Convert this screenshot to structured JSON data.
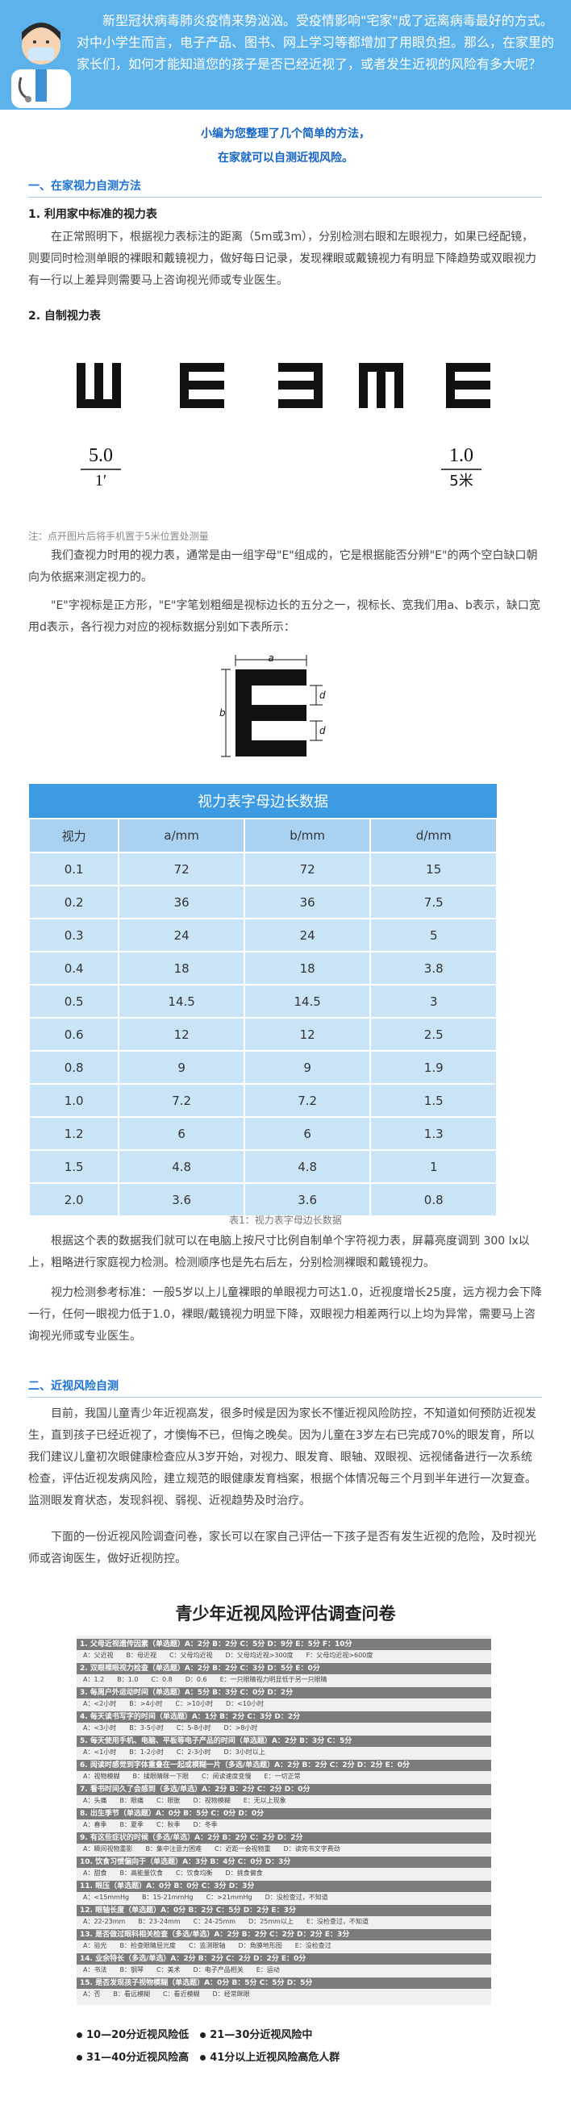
{
  "header": {
    "text": "新型冠状病毒肺炎疫情来势汹汹。受疫情影响\"宅家\"成了远离病毒最好的方式。对中小学生而言，电子产品、图书、网上学习等都增加了用眼负担。那么，在家里的家长们，如何才能知道您的孩子是否已经近视了，或者发生近视的风险有多大呢？"
  },
  "intro": [
    "小编为您整理了几个简单的方法，",
    "在家就可以自测近视风险。"
  ],
  "section1": {
    "heading": "一、在家视力自测方法",
    "sub1": "1. 利用家中标准的视力表",
    "p1": "在正常照明下，根据视力表标注的距离（5m或3m），分别检测右眼和左眼视力，如果已经配镜，则要同时检测单眼的裸眼和戴镜视力，做好每日记录，发现裸眼或戴镜视力有明显下降趋势或双眼视力有一行以上差异则需要马上咨询视光师或专业医生。",
    "sub2": "2. 自制视力表",
    "chart_labels": [
      "5.0",
      "1′",
      "1.0",
      "5米"
    ],
    "note": "注：点开图片后将手机置于5米位置处测量",
    "p2": "我们查视力时用的视力表，通常是由一组字母\"E\"组成的，它是根据能否分辨\"E\"的两个空白缺口朝向为依据来测定视力的。",
    "p3": "\"E\"字视标是正方形，\"E\"字笔划粗细是视标边长的五分之一，视标长、宽我们用a、b表示，缺口宽用d表示，各行视力对应的视标数据分别如下表所示：",
    "e_labels": [
      "a",
      "b",
      "d",
      "d"
    ],
    "p4": "根据这个表的数据我们就可以在电脑上按尺寸比例自制单个字符视力表，屏幕亮度调到 300 lx以上，粗略进行家庭视力检测。检测顺序也是先右后左，分别检测裸眼和戴镜视力。",
    "p5": "视力检测参考标准：一般5岁以上儿童裸眼的单眼视力可达1.0，近视度增长25度，远方视力会下降一行，任何一眼视力低于1.0，裸眼/戴镜视力明显下降，双眼视力相差两行以上均为异常，需要马上咨询视光师或专业医生。"
  },
  "table": {
    "title": "视力表字母边长数据",
    "columns": [
      "视力",
      "a/mm",
      "b/mm",
      "d/mm"
    ],
    "rows": [
      [
        "0.1",
        "72",
        "72",
        "15"
      ],
      [
        "0.2",
        "36",
        "36",
        "7.5"
      ],
      [
        "0.3",
        "24",
        "24",
        "5"
      ],
      [
        "0.4",
        "18",
        "18",
        "3.8"
      ],
      [
        "0.5",
        "14.5",
        "14.5",
        "3"
      ],
      [
        "0.6",
        "12",
        "12",
        "2.5"
      ],
      [
        "0.8",
        "9",
        "9",
        "1.9"
      ],
      [
        "1.0",
        "7.2",
        "7.2",
        "1.5"
      ],
      [
        "1.2",
        "6",
        "6",
        "1.3"
      ],
      [
        "1.5",
        "4.8",
        "4.8",
        "1"
      ],
      [
        "2.0",
        "3.6",
        "3.6",
        "0.8"
      ]
    ],
    "caption": "表1：视力表字母边长数据"
  },
  "section2": {
    "heading": "二、近视风险自测",
    "p1": "目前，我国儿童青少年近视高发，很多时候是因为家长不懂近视风险防控，不知道如何预防近视发生，直到孩子已经近视了，才懊悔不已，但悔之晚矣。因为儿童在3岁左右已完成70%的眼发育，所以我们建议儿童初次眼健康检查应从3岁开始，对视力、眼发育、眼轴、双眼视、远视储备进行一次系统检查，评估近视发病风险，建立规范的眼健康发育档案，根据个体情况每三个月到半年进行一次复查。监测眼发育状态，发现斜视、弱视、近视趋势及时治疗。",
    "p2": "下面的一份近视风险调查问卷，家长可以在家自己评估一下孩子是否有发生近视的危险，及时视光师或咨询医生，做好近视防控。"
  },
  "questionnaire": {
    "title": "青少年近视风险评估调查问卷",
    "items": [
      {
        "q": "1. 父母近视遗传因素（单选题）A：2分 B：2分 C：5分 D：9分 E：5分 F：10分",
        "o": "A：父近视　　B：母近视　　C：父母均近视　　D：父母均近视>300度　　F：父母均近视>600度"
      },
      {
        "q": "2. 双眼裸眼视力检查（单选题）A：2分 B：2分 C：3分 D：5分 E：0分",
        "o": "A：1.2　　B：1.0　　C：0.8　　D：0.6　　E：一只眼睛视力明显低于另一只眼睛"
      },
      {
        "q": "3. 每周户外运动时间（单选题）A：5分 B：3分 C：0分 D：2分",
        "o": "A：<2小时　　B：>4小时　　C：>10小时　　D：<10小时"
      },
      {
        "q": "4. 每天读书写字的时间（单选题）A：1分 B：2分 C：3分 D：2分",
        "o": "A：<3小时　　B：3-5小时　　C：5-8小时　　D：>8小时"
      },
      {
        "q": "5. 每天使用手机、电脑、平板等电子产品的时间（单选题）A：2分 B：3分 C：5分",
        "o": "A：<1小时　　B：1-2小时　　C：2-3小时　　D：3小时以上"
      },
      {
        "q": "6. 阅读时感觉到字体重叠在一起或模糊一片（多选/单选题）A：2分 B：2分 C：2分 D：2分 E：0分",
        "o": "A：视物模糊　　B：揉眼睛眯一下眼　　C：阅读速度变慢　　E：一切正常"
      },
      {
        "q": "7. 看书时间久了会感到（多选/单选）A：2分 B：2分 C：2分 D：0分",
        "o": "A：头痛　　B：眼痛　　C：眼胀　　D：视物模糊　　E：无以上现象"
      },
      {
        "q": "8. 出生季节（单选题）A：0分 B：5分 C：0分 D：0分",
        "o": "A：春季　　B：夏季　　C：秋季　　D：冬季"
      },
      {
        "q": "9. 有这些症状的时候（多选/单选）A：2分 B：2分 C：2分 D：2分",
        "o": "A：瞬间视物重影　　B：集中注意力困难　　C：近距一会视物重　　D：读完书文字费劲"
      },
      {
        "q": "10. 饮食习惯偏向于（单选题）A：3分 B：4分 C：0分 D：3分",
        "o": "A：甜食　　B：高能量饮食　　C：饮食均衡　　D：挑食偏食"
      },
      {
        "q": "11. 眼压（单选题）A：0分 B：0分 C：3分 D：3分",
        "o": "A：<15mmHg　　B：15-21mmHg　　C：>21mmHg　　D：没检查过，不知道"
      },
      {
        "q": "12. 眼轴长度（单选题）A：0分 B：2分 C：5分 D：2分 E：3分",
        "o": "A：22-23mm　　B：23-24mm　　C：24-25mm　　D：25mm以上　　E：没检查过，不知道"
      },
      {
        "q": "13. 是否做过眼科相关检查（多选/单选）A：2分 B：2分 C：2分 D：2分 E：3分",
        "o": "A：验光　　B：检查眼睛屈光度　　C：监测眼轴　　D：角膜地形图　　E：没检查过"
      },
      {
        "q": "14. 业余特长（多选/单选）A：2分 B：2分 C：2分 D：2分 E：0分",
        "o": "A：书法　　B：钢琴　　C：美术　　D：电子产品相关　　E：运动"
      },
      {
        "q": "15. 是否发现孩子视物模糊（单选题）A：0分 B：5分 C：5分 D：5分",
        "o": "A：否　　B：看远模糊　　C：看近模糊　　D：经常眯眼"
      }
    ],
    "scoring": [
      [
        "10—20分近视风险低",
        "21—30分近视风险中"
      ],
      [
        "31—40分近视风险高",
        "41分以上近视风险高危人群"
      ]
    ]
  }
}
